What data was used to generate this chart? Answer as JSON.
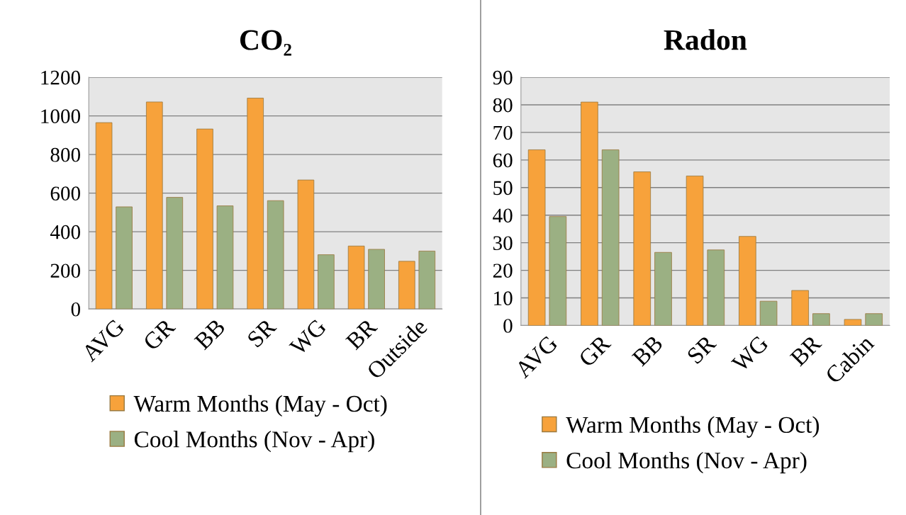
{
  "chart_data": [
    {
      "type": "bar",
      "title": "CO₂",
      "categories": [
        "AVG",
        "GR",
        "BB",
        "SR",
        "WG",
        "BR",
        "Outside"
      ],
      "series": [
        {
          "name": "Warm Months (May - Oct)",
          "color": "#f7a23b",
          "values": [
            965,
            1072,
            932,
            1092,
            668,
            326,
            247
          ]
        },
        {
          "name": "Cool Months (Nov - Apr)",
          "color": "#9bb083",
          "values": [
            529,
            578,
            534,
            561,
            281,
            309,
            300
          ]
        }
      ],
      "ylim": [
        0,
        1200
      ],
      "yticks": [
        0,
        200,
        400,
        600,
        800,
        1000,
        1200
      ],
      "grid": "y",
      "legend": "bottom"
    },
    {
      "type": "bar",
      "title": "Radon",
      "categories": [
        "AVG",
        "GR",
        "BB",
        "SR",
        "WG",
        "BR",
        "Cabin"
      ],
      "series": [
        {
          "name": "Warm Months (May - Oct)",
          "color": "#f7a23b",
          "values": [
            63.7,
            81,
            55.7,
            54.2,
            32.3,
            12.7,
            2.2
          ]
        },
        {
          "name": "Cool Months (Nov - Apr)",
          "color": "#9bb083",
          "values": [
            39.5,
            63.7,
            26.5,
            27.4,
            8.8,
            4.3,
            4.3
          ]
        }
      ],
      "ylim": [
        0,
        90
      ],
      "yticks": [
        0,
        10,
        20,
        30,
        40,
        50,
        60,
        70,
        80,
        90
      ],
      "grid": "y",
      "legend": "bottom"
    }
  ]
}
